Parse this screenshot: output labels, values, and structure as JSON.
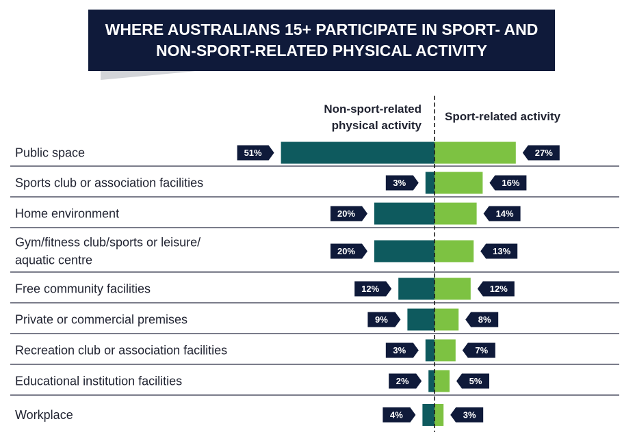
{
  "title": {
    "line1": "WHERE AUSTRALIANS 15+ PARTICIPATE IN SPORT- AND",
    "line2": "NON-SPORT-RELATED PHYSICAL ACTIVITY"
  },
  "colors": {
    "title_bg": "#0f1a3a",
    "non_sport": "#0e5a5e",
    "sport": "#7dc242",
    "label_bg": "#0f1a3a"
  },
  "chart_data": {
    "type": "bar",
    "orientation": "horizontal-diverging",
    "title": "WHERE AUSTRALIANS 15+ PARTICIPATE IN SPORT- AND NON-SPORT-RELATED PHYSICAL ACTIVITY",
    "categories": [
      [
        "Public space"
      ],
      [
        "Sports club or association facilities"
      ],
      [
        "Home environment"
      ],
      [
        "Gym/fitness club/sports or leisure/",
        "aquatic centre"
      ],
      [
        "Free community facilities"
      ],
      [
        "Private or commercial premises"
      ],
      [
        "Recreation club or association facilities"
      ],
      [
        "Educational institution facilities"
      ],
      [
        "Workplace"
      ]
    ],
    "series": [
      {
        "name": "Non-sport-related physical activity",
        "header_lines": [
          "Non-sport-related",
          "physical activity"
        ],
        "side": "left",
        "values": [
          51,
          3,
          20,
          20,
          12,
          9,
          3,
          2,
          4
        ]
      },
      {
        "name": "Sport-related activity",
        "header_lines": [
          "Sport-related activity"
        ],
        "side": "right",
        "values": [
          27,
          16,
          14,
          13,
          12,
          8,
          7,
          5,
          3
        ]
      }
    ],
    "unit": "%"
  }
}
